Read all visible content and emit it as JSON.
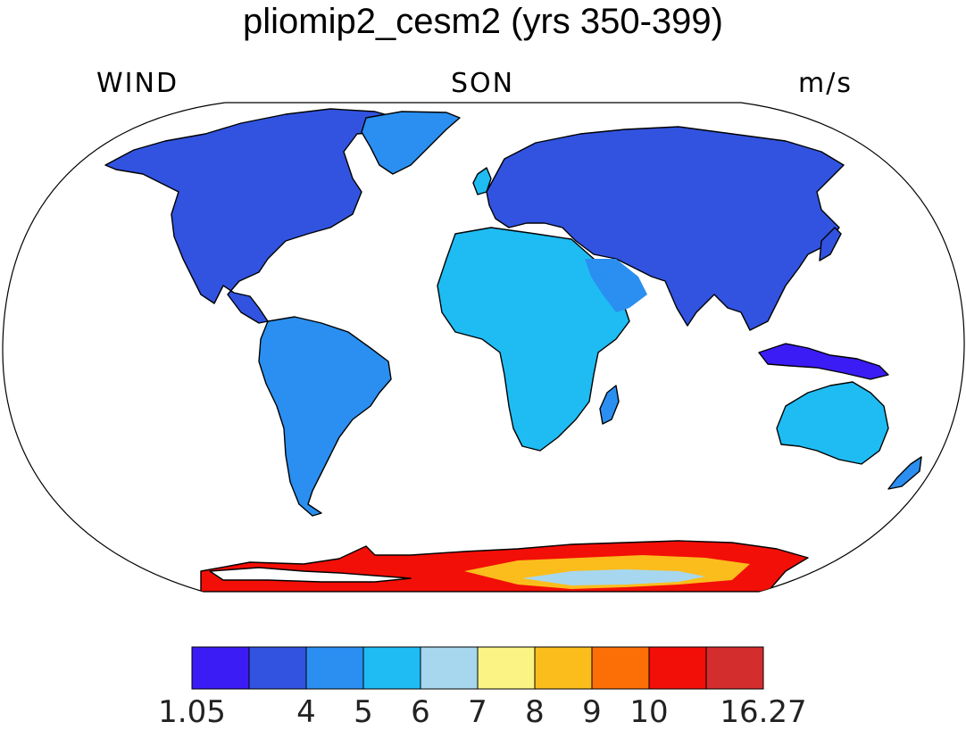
{
  "title": "pliomip2_cesm2 (yrs 350-399)",
  "left_label": "WIND",
  "center_label": "SON",
  "right_label": "m/s",
  "colorbar": {
    "colors": [
      "#3b1cf5",
      "#3253e0",
      "#2a8ff0",
      "#1ebcf3",
      "#a6d7ef",
      "#fbf383",
      "#fbbd1c",
      "#fb6f06",
      "#f20f07",
      "#d42d2d"
    ],
    "labels": [
      "1.05",
      "4",
      "5",
      "6",
      "7",
      "8",
      "9",
      "10",
      "16.27"
    ]
  },
  "palette": {
    "ocean": "#ffffff",
    "coast": "#000000"
  }
}
